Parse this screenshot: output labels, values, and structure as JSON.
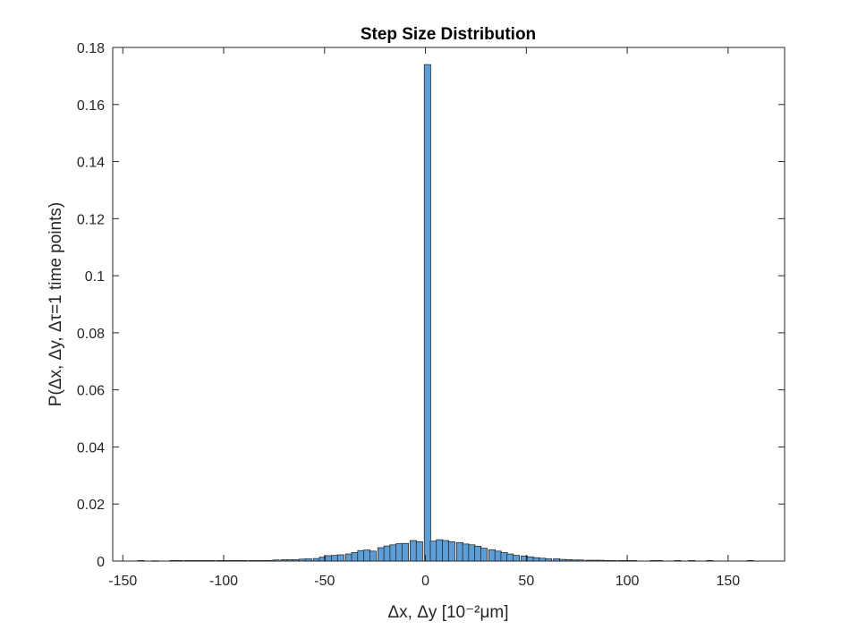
{
  "chart_data": {
    "type": "bar",
    "title": "Step Size Distribution",
    "xlabel": "Δx, Δy [10⁻²μm]",
    "ylabel": "P(Δx, Δy, Δτ=1 time points)",
    "xlim": [
      -155,
      178
    ],
    "ylim": [
      0,
      0.18
    ],
    "xticks": [
      -150,
      -100,
      -50,
      0,
      50,
      100,
      150
    ],
    "yticks": [
      0,
      0.02,
      0.04,
      0.06,
      0.08,
      0.1,
      0.12,
      0.14,
      0.16,
      0.18
    ],
    "ytick_labels": [
      "0",
      "0.02",
      "0.04",
      "0.06",
      "0.08",
      "0.1",
      "0.12",
      "0.14",
      "0.16",
      "0.18"
    ],
    "bin_width": 3.2,
    "grid": false,
    "legend": "none",
    "bar_color": "#5e9ed6",
    "edge_color": "#1a1a1a",
    "bars": [
      {
        "x": -141,
        "y": 0.0002
      },
      {
        "x": -134,
        "y": 0.0001
      },
      {
        "x": -125,
        "y": 0.0002
      },
      {
        "x": -122,
        "y": 0.0002
      },
      {
        "x": -118,
        "y": 0.0002
      },
      {
        "x": -115,
        "y": 0.0002
      },
      {
        "x": -112,
        "y": 0.0002
      },
      {
        "x": -109,
        "y": 0.0002
      },
      {
        "x": -106,
        "y": 0.0002
      },
      {
        "x": -102,
        "y": 0.0002
      },
      {
        "x": -99,
        "y": 0.0002
      },
      {
        "x": -96,
        "y": 0.0002
      },
      {
        "x": -93,
        "y": 0.0002
      },
      {
        "x": -90,
        "y": 0.0002
      },
      {
        "x": -86,
        "y": 0.0002
      },
      {
        "x": -83,
        "y": 0.0002
      },
      {
        "x": -80,
        "y": 0.0002
      },
      {
        "x": -77,
        "y": 0.0002
      },
      {
        "x": -74,
        "y": 0.0004
      },
      {
        "x": -70,
        "y": 0.0005
      },
      {
        "x": -67,
        "y": 0.0005
      },
      {
        "x": -64,
        "y": 0.0005
      },
      {
        "x": -61,
        "y": 0.0007
      },
      {
        "x": -58,
        "y": 0.0008
      },
      {
        "x": -54,
        "y": 0.0009
      },
      {
        "x": -51,
        "y": 0.0014
      },
      {
        "x": -48,
        "y": 0.0019
      },
      {
        "x": -45,
        "y": 0.002
      },
      {
        "x": -42,
        "y": 0.0022
      },
      {
        "x": -38,
        "y": 0.0025
      },
      {
        "x": -35,
        "y": 0.003
      },
      {
        "x": -32,
        "y": 0.0037
      },
      {
        "x": -29,
        "y": 0.0039
      },
      {
        "x": -26,
        "y": 0.0035
      },
      {
        "x": -22,
        "y": 0.0047
      },
      {
        "x": -19,
        "y": 0.0053
      },
      {
        "x": -16,
        "y": 0.0057
      },
      {
        "x": -13,
        "y": 0.0061
      },
      {
        "x": -10,
        "y": 0.0062
      },
      {
        "x": -6,
        "y": 0.0072
      },
      {
        "x": -3,
        "y": 0.0068
      },
      {
        "x": 1,
        "y": 0.174
      },
      {
        "x": 4,
        "y": 0.007
      },
      {
        "x": 7,
        "y": 0.0075
      },
      {
        "x": 10,
        "y": 0.0072
      },
      {
        "x": 13,
        "y": 0.0068
      },
      {
        "x": 17,
        "y": 0.0065
      },
      {
        "x": 20,
        "y": 0.006
      },
      {
        "x": 23,
        "y": 0.0057
      },
      {
        "x": 26,
        "y": 0.0052
      },
      {
        "x": 29,
        "y": 0.0045
      },
      {
        "x": 33,
        "y": 0.004
      },
      {
        "x": 36,
        "y": 0.0035
      },
      {
        "x": 39,
        "y": 0.003
      },
      {
        "x": 42,
        "y": 0.0025
      },
      {
        "x": 45,
        "y": 0.002
      },
      {
        "x": 49,
        "y": 0.0018
      },
      {
        "x": 52,
        "y": 0.0015
      },
      {
        "x": 55,
        "y": 0.0012
      },
      {
        "x": 58,
        "y": 0.001
      },
      {
        "x": 61,
        "y": 0.0008
      },
      {
        "x": 65,
        "y": 0.0008
      },
      {
        "x": 68,
        "y": 0.0006
      },
      {
        "x": 71,
        "y": 0.0005
      },
      {
        "x": 74,
        "y": 0.0004
      },
      {
        "x": 77,
        "y": 0.0004
      },
      {
        "x": 81,
        "y": 0.0003
      },
      {
        "x": 84,
        "y": 0.0003
      },
      {
        "x": 87,
        "y": 0.0003
      },
      {
        "x": 90,
        "y": 0.0002
      },
      {
        "x": 93,
        "y": 0.0002
      },
      {
        "x": 97,
        "y": 0.0002
      },
      {
        "x": 100,
        "y": 0.0002
      },
      {
        "x": 103,
        "y": 0.0002
      },
      {
        "x": 113,
        "y": 0.0002
      },
      {
        "x": 116,
        "y": 0.0002
      },
      {
        "x": 125,
        "y": 0.0002
      },
      {
        "x": 132,
        "y": 0.0002
      },
      {
        "x": 141,
        "y": 0.0002
      },
      {
        "x": 161,
        "y": 0.0002
      }
    ]
  }
}
